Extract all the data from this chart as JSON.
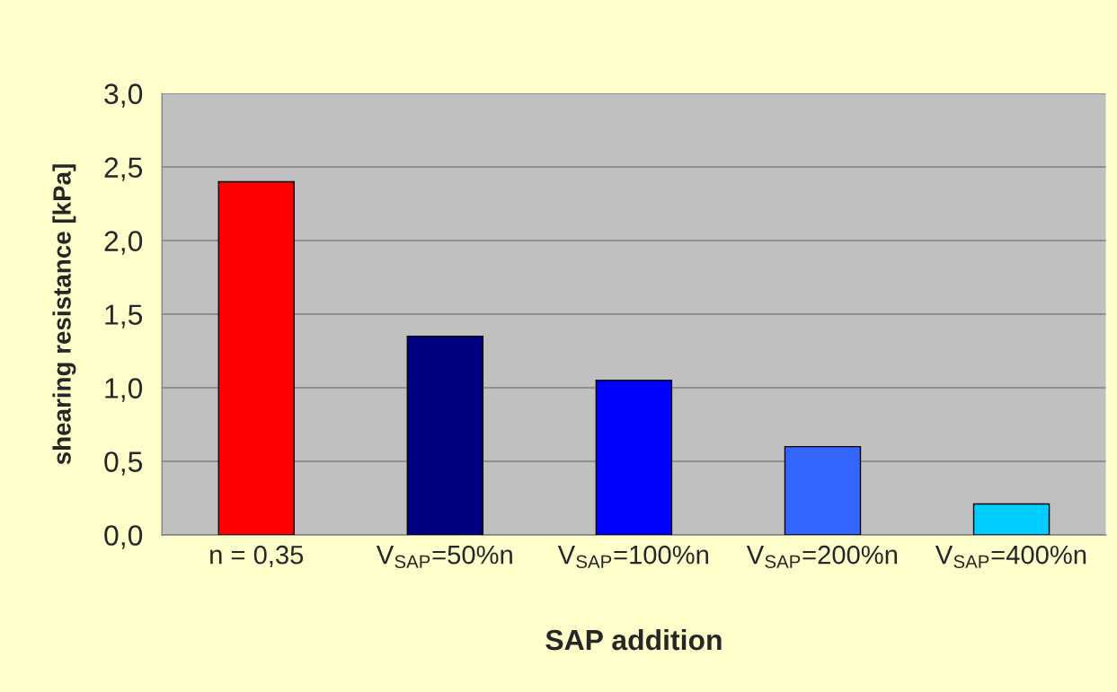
{
  "chart_data": {
    "type": "bar",
    "xlabel": "SAP addition",
    "ylabel": "shearing resistance [kPa]",
    "categories": [
      "n = 0,35",
      "V$_{SAP}$=50%n",
      "V$_{SAP}$=100%n",
      "V$_{SAP}$=200%n",
      "V$_{SAP}$=400%n"
    ],
    "values": [
      2.4,
      1.35,
      1.05,
      0.6,
      0.21
    ],
    "colors": [
      "#ff0000",
      "#000080",
      "#0000ff",
      "#3366ff",
      "#00ccff"
    ],
    "ylim": [
      0,
      3.0
    ],
    "yticks": [
      {
        "value": 0,
        "label": "0,0"
      },
      {
        "value": 0.5,
        "label": "0,5"
      },
      {
        "value": 1.0,
        "label": "1,0"
      },
      {
        "value": 1.5,
        "label": "1,5"
      },
      {
        "value": 2.0,
        "label": "2,0"
      },
      {
        "value": 2.5,
        "label": "2,5"
      },
      {
        "value": 3.0,
        "label": "3,0"
      }
    ],
    "grid": "y"
  }
}
